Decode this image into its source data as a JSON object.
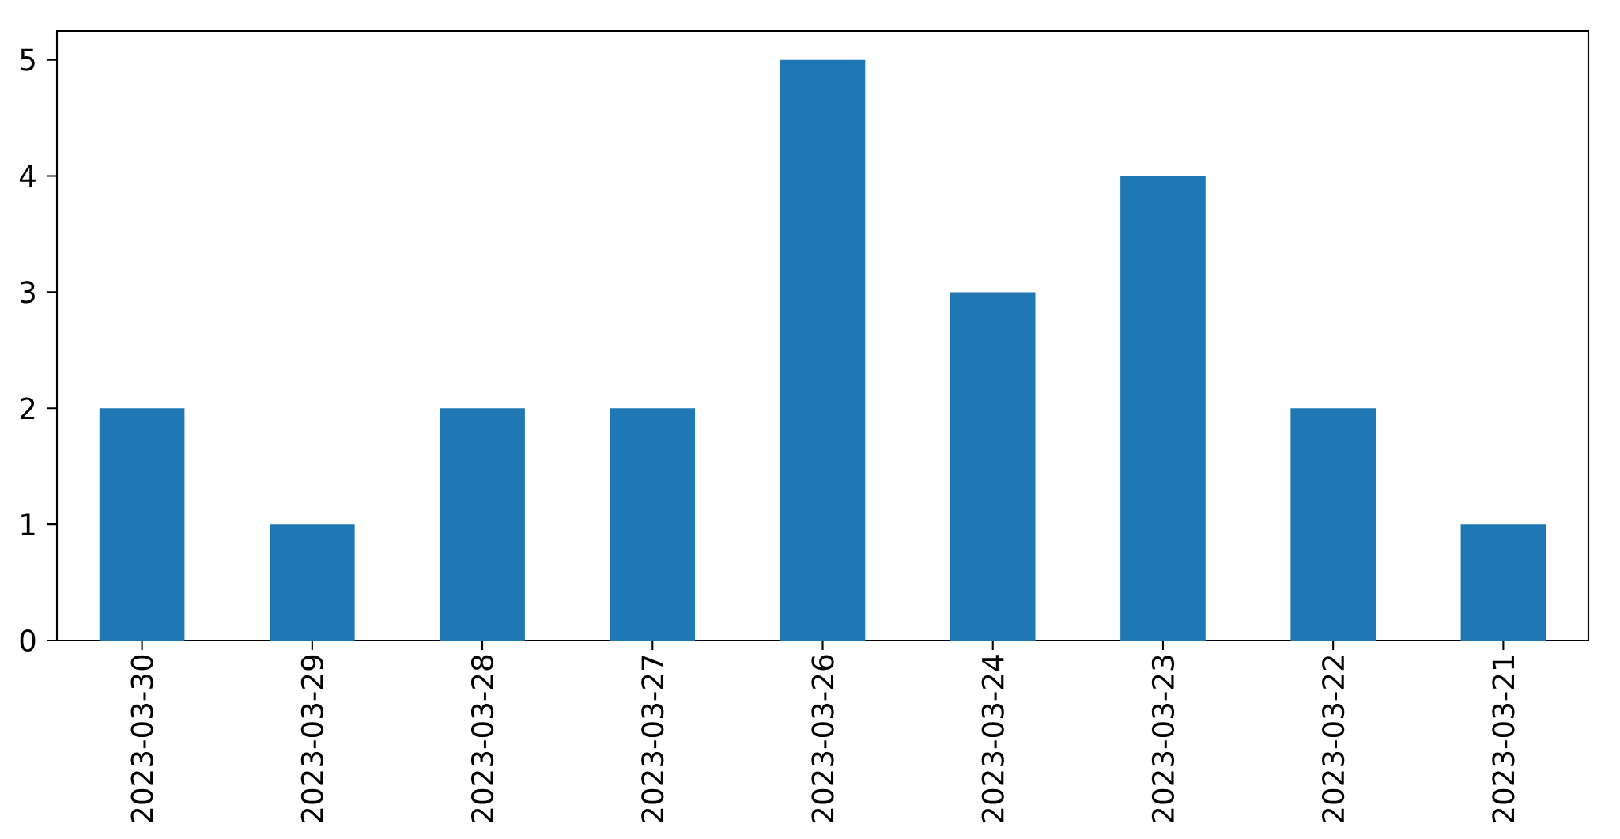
{
  "chart_data": {
    "type": "bar",
    "categories": [
      "2023-03-30",
      "2023-03-29",
      "2023-03-28",
      "2023-03-27",
      "2023-03-26",
      "2023-03-24",
      "2023-03-23",
      "2023-03-22",
      "2023-03-21"
    ],
    "values": [
      2,
      1,
      2,
      2,
      5,
      3,
      4,
      2,
      1
    ],
    "color": "#1f77b4",
    "ylim": [
      0,
      5.25
    ],
    "yticks": [
      0,
      1,
      2,
      3,
      4,
      5
    ],
    "grid": false
  }
}
